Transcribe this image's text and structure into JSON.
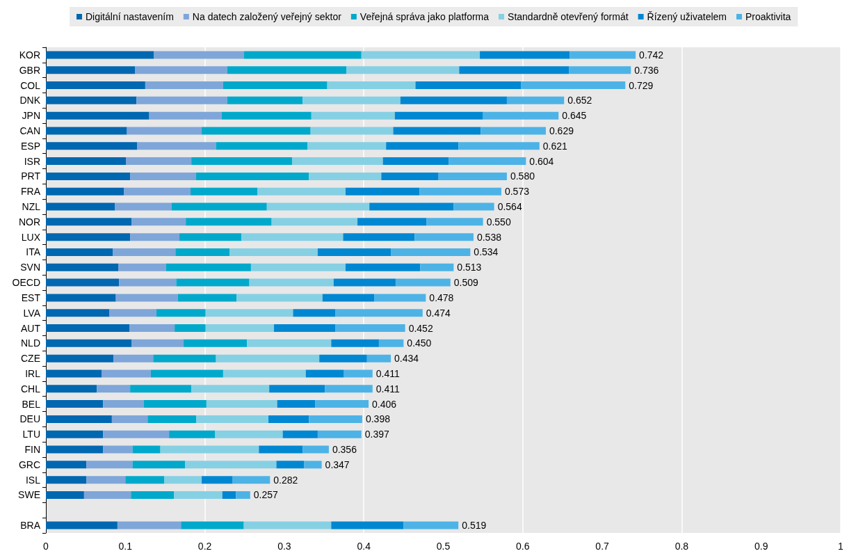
{
  "chart_data": {
    "type": "bar",
    "orientation": "horizontal",
    "stacked": true,
    "categories": [
      "KOR",
      "GBR",
      "COL",
      "DNK",
      "JPN",
      "CAN",
      "ESP",
      "ISR",
      "PRT",
      "FRA",
      "NZL",
      "NOR",
      "LUX",
      "ITA",
      "SVN",
      "OECD",
      "EST",
      "LVA",
      "AUT",
      "NLD",
      "CZE",
      "IRL",
      "CHL",
      "BEL",
      "DEU",
      "LTU",
      "FIN",
      "GRC",
      "ISL",
      "SWE",
      null,
      "BRA"
    ],
    "series": [
      {
        "name": "Digitální nastavením",
        "color": "#0067b1",
        "values": [
          0.136,
          0.112,
          0.125,
          0.114,
          0.13,
          0.102,
          0.115,
          0.101,
          0.106,
          0.098,
          0.087,
          0.108,
          0.106,
          0.084,
          0.091,
          0.092,
          0.088,
          0.08,
          0.105,
          0.108,
          0.085,
          0.07,
          0.064,
          0.072,
          0.083,
          0.072,
          0.072,
          0.051,
          0.051,
          0.048,
          null,
          0.09
        ]
      },
      {
        "name": "Na datech založený veřejný sektor",
        "color": "#7fa6d9",
        "values": [
          0.113,
          0.116,
          0.098,
          0.114,
          0.091,
          0.094,
          0.099,
          0.082,
          0.083,
          0.084,
          0.071,
          0.068,
          0.062,
          0.079,
          0.06,
          0.072,
          0.078,
          0.059,
          0.057,
          0.065,
          0.05,
          0.062,
          0.042,
          0.051,
          0.045,
          0.083,
          0.037,
          0.058,
          0.049,
          0.059,
          null,
          0.08
        ]
      },
      {
        "name": "Veřejná správa jako platforma",
        "color": "#00a9cb",
        "values": [
          0.148,
          0.15,
          0.131,
          0.095,
          0.113,
          0.137,
          0.115,
          0.127,
          0.142,
          0.084,
          0.12,
          0.108,
          0.078,
          0.068,
          0.107,
          0.092,
          0.074,
          0.062,
          0.039,
          0.08,
          0.079,
          0.091,
          0.077,
          0.079,
          0.061,
          0.058,
          0.035,
          0.066,
          0.049,
          0.054,
          null,
          0.079
        ]
      },
      {
        "name": "Standardně otevřený formát",
        "color": "#86d0e4",
        "values": [
          0.149,
          0.142,
          0.111,
          0.123,
          0.105,
          0.104,
          0.099,
          0.114,
          0.091,
          0.111,
          0.129,
          0.108,
          0.128,
          0.111,
          0.119,
          0.106,
          0.108,
          0.11,
          0.086,
          0.106,
          0.13,
          0.104,
          0.098,
          0.089,
          0.091,
          0.085,
          0.124,
          0.115,
          0.047,
          0.061,
          null,
          0.11
        ]
      },
      {
        "name": "Řízený uživatelem",
        "color": "#0087d2",
        "values": [
          0.113,
          0.138,
          0.133,
          0.134,
          0.111,
          0.11,
          0.091,
          0.083,
          0.072,
          0.093,
          0.106,
          0.087,
          0.09,
          0.092,
          0.094,
          0.078,
          0.065,
          0.053,
          0.077,
          0.06,
          0.06,
          0.048,
          0.07,
          0.048,
          0.051,
          0.044,
          0.055,
          0.035,
          0.039,
          0.017,
          null,
          0.091
        ]
      },
      {
        "name": "Proaktivita",
        "color": "#4db3e6",
        "values": [
          0.083,
          0.078,
          0.131,
          0.072,
          0.095,
          0.082,
          0.102,
          0.097,
          0.086,
          0.103,
          0.051,
          0.071,
          0.074,
          0.1,
          0.042,
          0.069,
          0.065,
          0.11,
          0.088,
          0.031,
          0.03,
          0.036,
          0.06,
          0.067,
          0.067,
          0.055,
          0.033,
          0.022,
          0.047,
          0.018,
          null,
          0.069
        ]
      }
    ],
    "totals": [
      "0.742",
      "0.736",
      "0.729",
      "0.652",
      "0.645",
      "0.629",
      "0.621",
      "0.604",
      "0.580",
      "0.573",
      "0.564",
      "0.550",
      "0.538",
      "0.534",
      "0.513",
      "0.509",
      "0.478",
      "0.474",
      "0.452",
      "0.450",
      "0.434",
      "0.411",
      "0.411",
      "0.406",
      "0.398",
      "0.397",
      "0.356",
      "0.347",
      "0.282",
      "0.257",
      null,
      "0.519"
    ],
    "xlim": [
      0,
      1
    ],
    "xticks": [
      0,
      0.1,
      0.2,
      0.3,
      0.4,
      0.5,
      0.6,
      0.7,
      0.8,
      0.9,
      1
    ],
    "grid": "x",
    "legend": "top"
  }
}
